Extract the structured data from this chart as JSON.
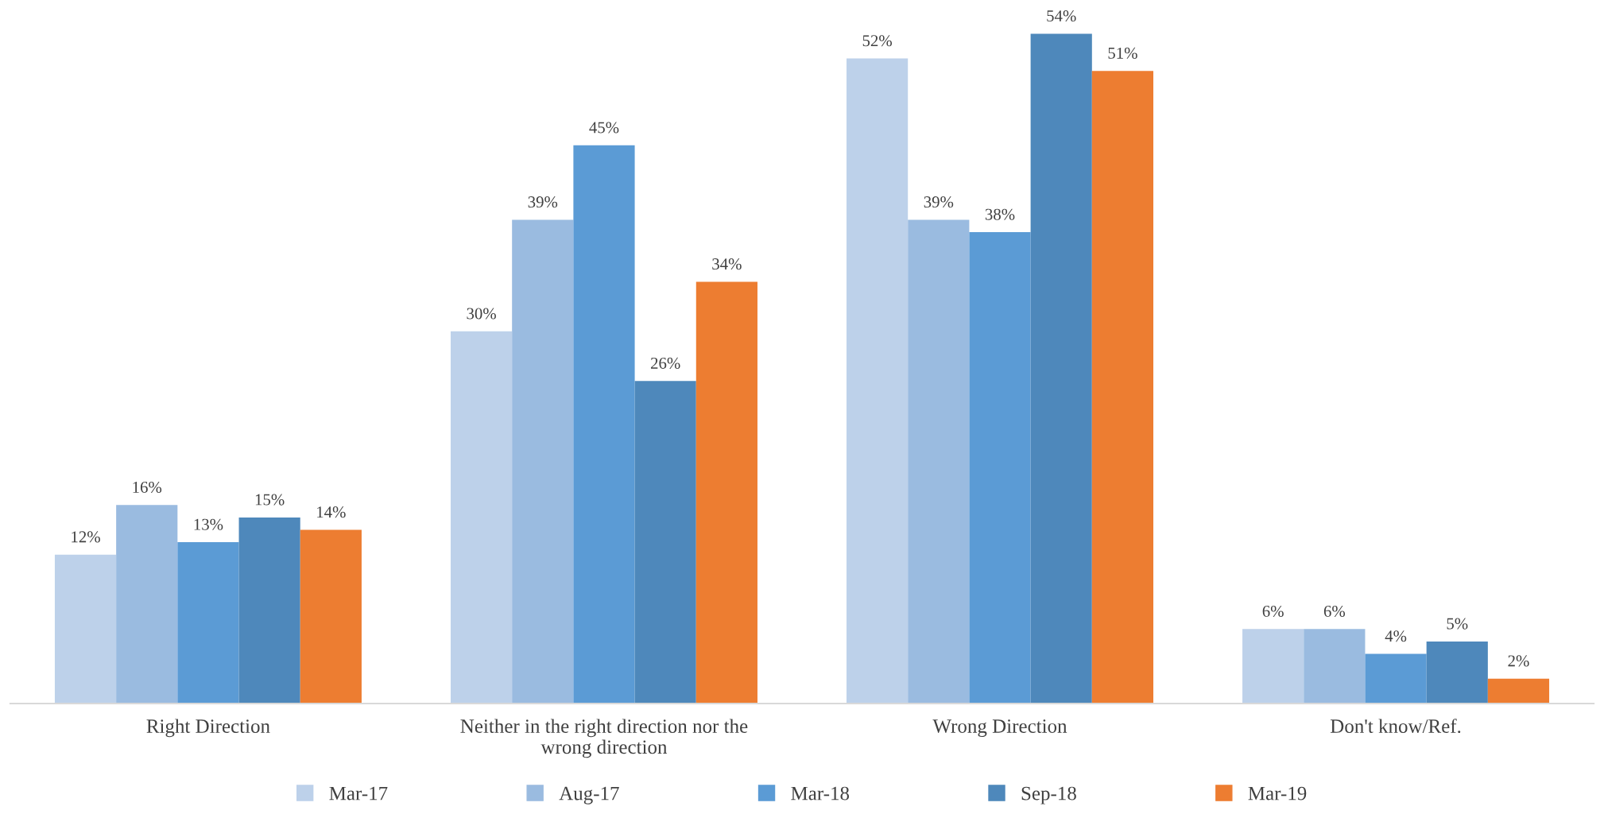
{
  "chart_data": {
    "type": "bar",
    "categories": [
      "Right Direction",
      "Neither in the right direction nor the\nwrong direction",
      "Wrong Direction",
      "Don't know/Ref."
    ],
    "series": [
      {
        "name": "Mar-17",
        "color": "#bdd1ea",
        "values": [
          12,
          30,
          52,
          6
        ],
        "value_labels": [
          "12%",
          "30%",
          "52%",
          "6%"
        ]
      },
      {
        "name": "Aug-17",
        "color": "#9abbe0",
        "values": [
          16,
          39,
          39,
          6
        ],
        "value_labels": [
          "16%",
          "39%",
          "39%",
          "6%"
        ]
      },
      {
        "name": "Mar-18",
        "color": "#5b9bd5",
        "values": [
          13,
          45,
          38,
          4
        ],
        "value_labels": [
          "13%",
          "45%",
          "38%",
          "4%"
        ]
      },
      {
        "name": "Sep-18",
        "color": "#4e88bb",
        "values": [
          15,
          26,
          54,
          5
        ],
        "value_labels": [
          "15%",
          "26%",
          "54%",
          "5%"
        ]
      },
      {
        "name": "Mar-19",
        "color": "#ed7d31",
        "values": [
          14,
          34,
          51,
          2
        ],
        "value_labels": [
          "14%",
          "34%",
          "51%",
          "2%"
        ]
      }
    ],
    "grid": false,
    "legend": "bottom",
    "tick_labels": "x"
  }
}
